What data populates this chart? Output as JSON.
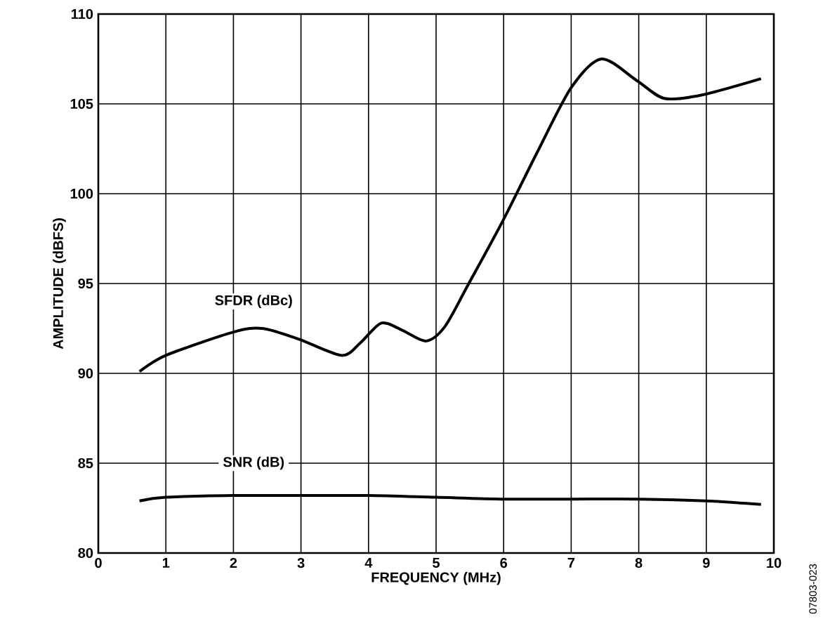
{
  "chart_data": {
    "type": "line",
    "xlabel": "FREQUENCY (MHz)",
    "ylabel": "AMPLITUDE (dBFS)",
    "xlim": [
      0,
      10
    ],
    "xticks": [
      0,
      1,
      2,
      3,
      4,
      5,
      6,
      7,
      8,
      9,
      10
    ],
    "ylim": [
      80,
      110
    ],
    "yticks": [
      80,
      85,
      90,
      95,
      100,
      105,
      110
    ],
    "grid": true,
    "marker": "none",
    "line_style": "solid",
    "series": [
      {
        "name": "SFDR (dBc)",
        "color": "#000000",
        "x": [
          0.61,
          1.0,
          2.0,
          2.43,
          2.97,
          3.6,
          3.88,
          4.19,
          4.5,
          4.85,
          5.13,
          5.47,
          5.99,
          6.51,
          7.0,
          7.45,
          7.97,
          8.38,
          8.94,
          9.81
        ],
        "values": [
          90.1,
          91.0,
          92.3,
          92.5,
          91.9,
          91.0,
          91.7,
          92.8,
          92.4,
          91.8,
          92.6,
          94.9,
          98.5,
          102.4,
          105.9,
          107.5,
          106.3,
          105.3,
          105.5,
          106.4
        ]
      },
      {
        "name": "SNR (dB)",
        "color": "#000000",
        "x": [
          0.61,
          1,
          2,
          3,
          4,
          5,
          6,
          7,
          8,
          9,
          9.81
        ],
        "values": [
          82.9,
          83.1,
          83.2,
          83.2,
          83.2,
          83.1,
          83.0,
          83.0,
          83.0,
          82.9,
          82.7
        ]
      }
    ],
    "annotations": [
      "07803-023"
    ]
  }
}
